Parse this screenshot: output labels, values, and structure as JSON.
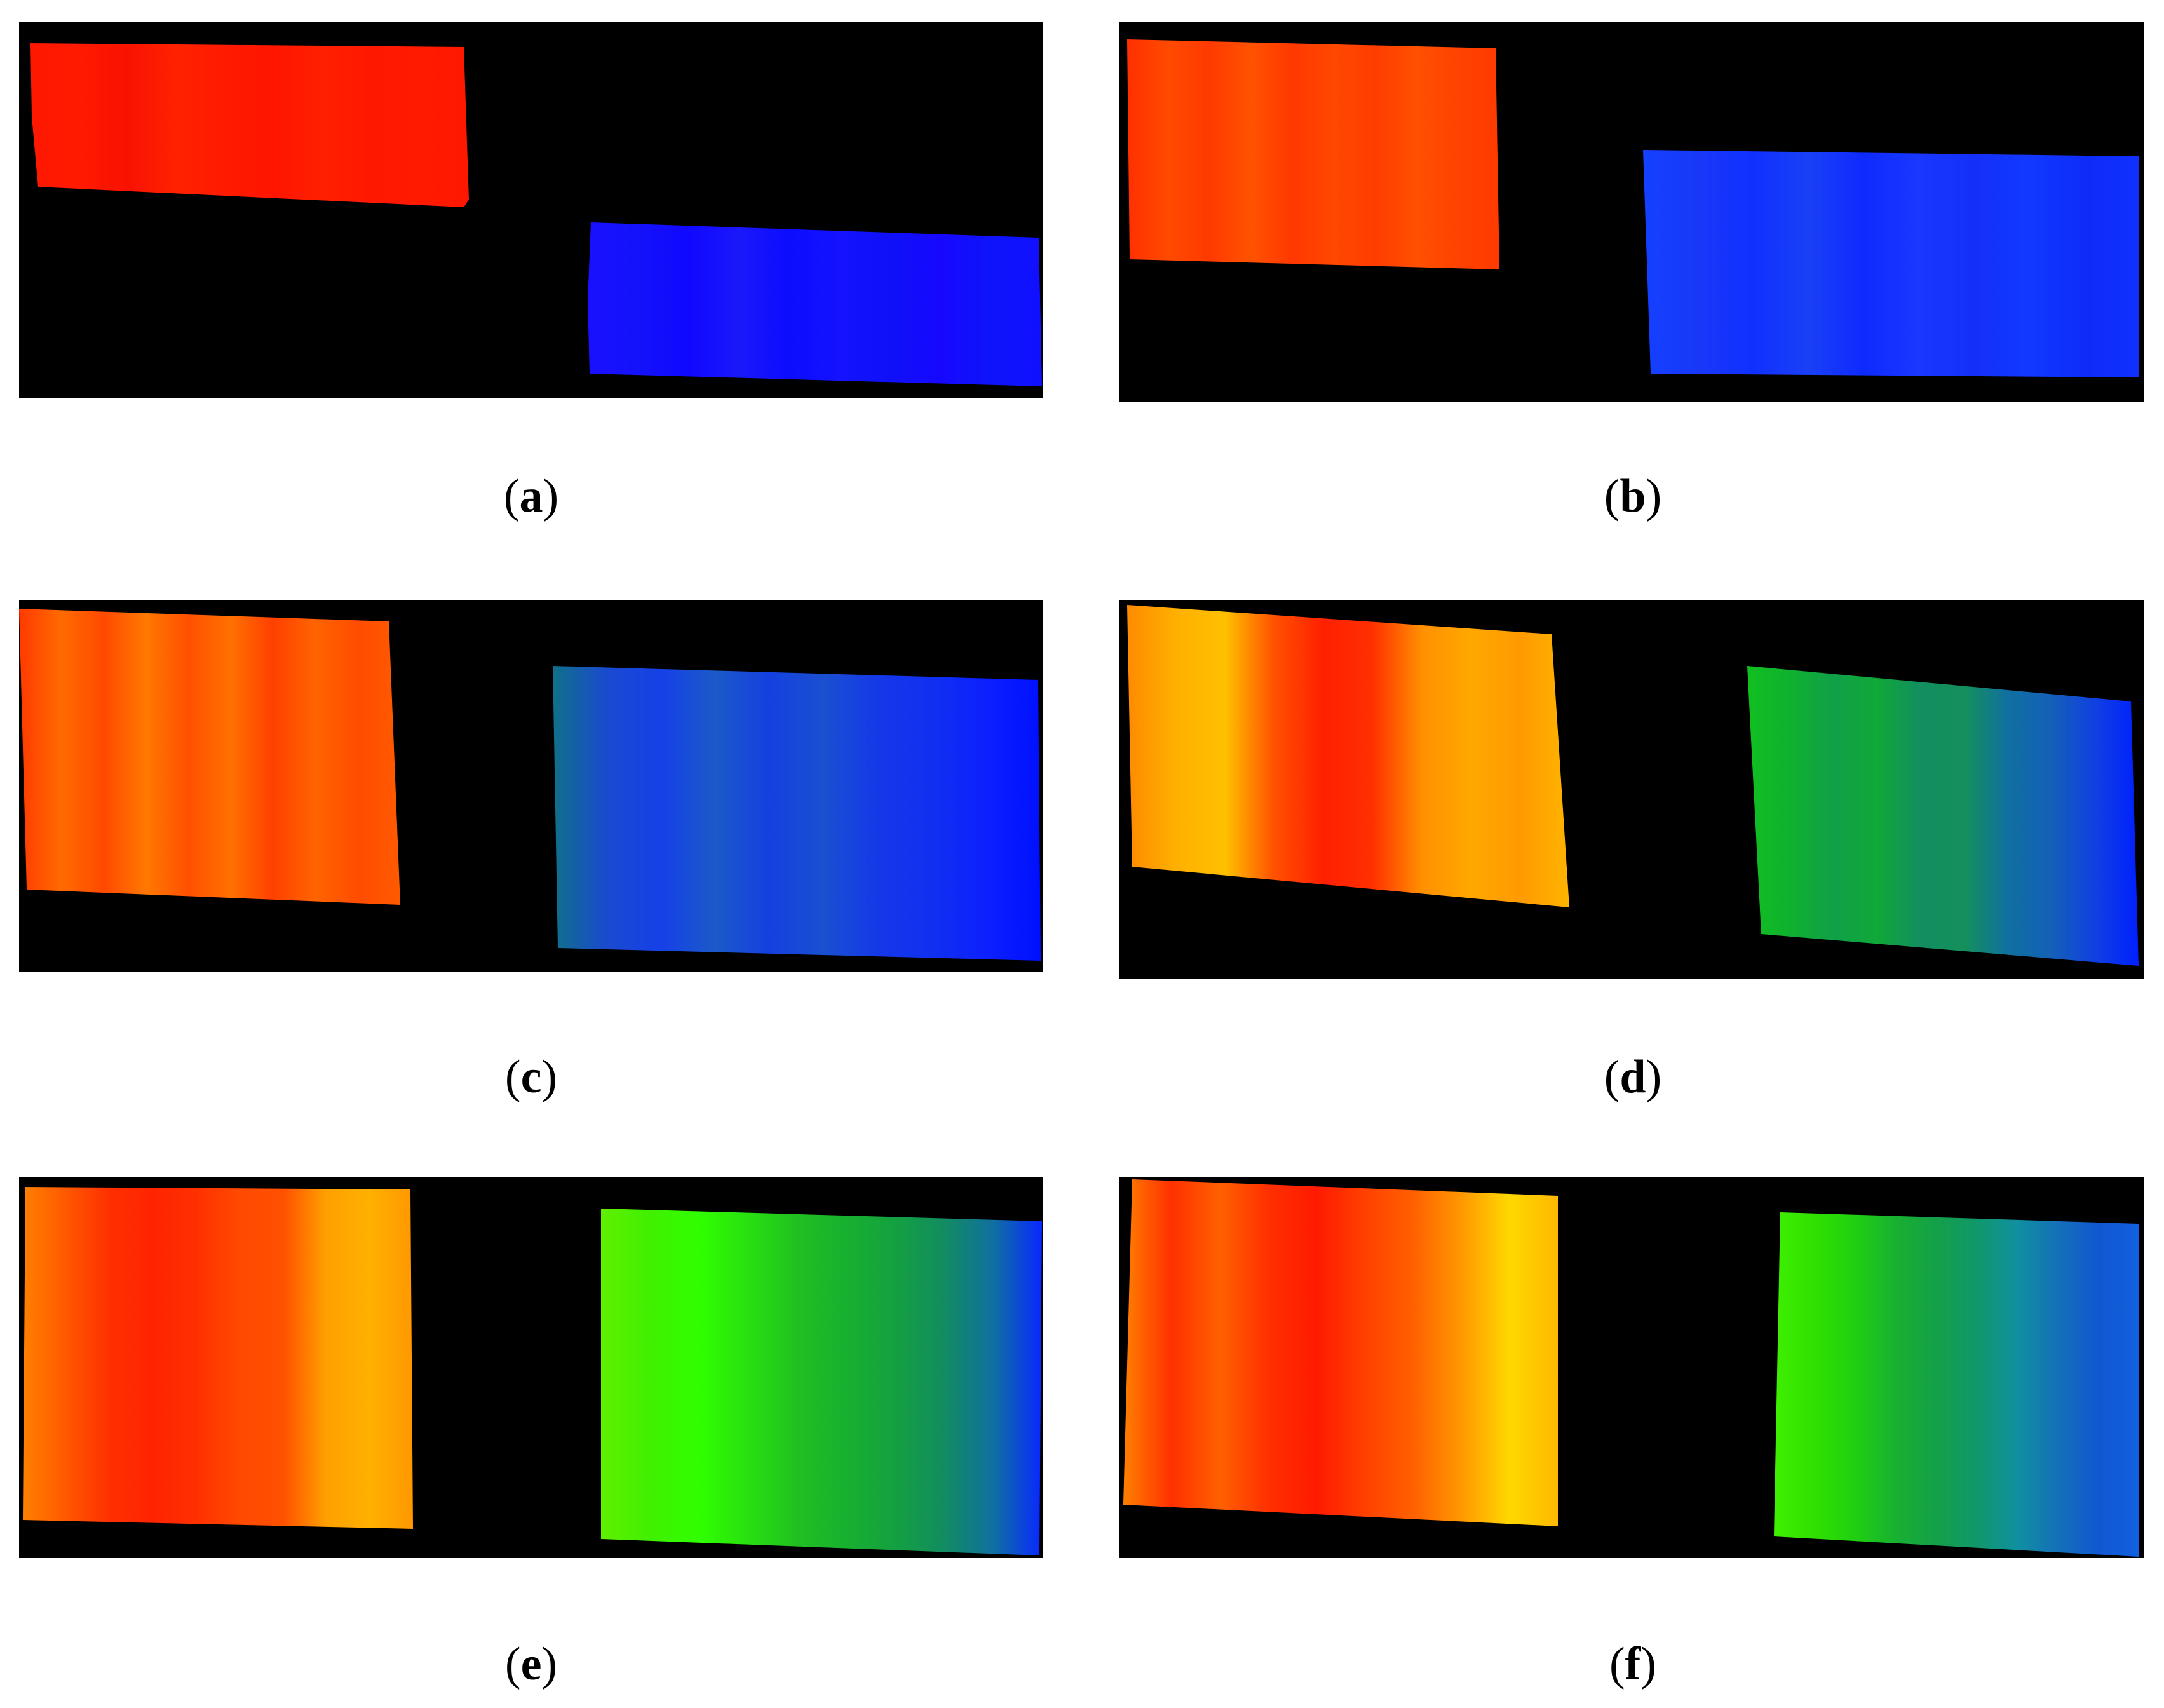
{
  "panels": [
    {
      "id": "a",
      "caption_open": "(",
      "caption_letter": "a",
      "caption_close": ")",
      "left_patch": {
        "stops": [
          "#ff1800",
          "#ff1a00",
          "#f81200",
          "#ff2200",
          "#ff1a00",
          "#ff1500",
          "#ff2000",
          "#ff1800",
          "#ff1a00",
          "#ff1800"
        ]
      },
      "right_patch": {
        "stops": [
          "#1a10ff",
          "#1412fa",
          "#1008ff",
          "#1a18fa",
          "#0c0cff",
          "#1412ff",
          "#0f10f8",
          "#1608ff",
          "#0e14fa",
          "#1010ff"
        ]
      }
    },
    {
      "id": "b",
      "caption_open": "(",
      "caption_letter": "b",
      "caption_close": ")",
      "left_patch": {
        "stops": [
          "#ff3000",
          "#ff4a00",
          "#ff3a00",
          "#ff5200",
          "#ff3800",
          "#ff4800",
          "#ff3c00",
          "#ff5000",
          "#ff4200",
          "#ff3a00"
        ]
      },
      "right_patch": {
        "stops": [
          "#1440ff",
          "#1838f8",
          "#1030ff",
          "#1a40f5",
          "#0e2aff",
          "#1838ff",
          "#1430f8",
          "#1238ff",
          "#0e2cf8",
          "#1030ff"
        ]
      }
    },
    {
      "id": "c",
      "caption_open": "(",
      "caption_letter": "c",
      "caption_close": ")",
      "left_patch": {
        "stops": [
          "#ff3a00",
          "#ff6a00",
          "#ff4a00",
          "#ff7800",
          "#ff5000",
          "#ff7000",
          "#ff4000",
          "#ff6400",
          "#ff4c00",
          "#ff5a00"
        ]
      },
      "right_patch": {
        "stops": [
          "#107088",
          "#1a4ad0",
          "#1640e8",
          "#1b5ac8",
          "#1440e0",
          "#1a50d0",
          "#1438e8",
          "#1030f0",
          "#0c20ff",
          "#0010ff"
        ]
      }
    },
    {
      "id": "d",
      "caption_open": "(",
      "caption_letter": "d",
      "caption_close": ")",
      "left_patch": {
        "stops": [
          "#ff8a00",
          "#ffb000",
          "#ffc000",
          "#ff5000",
          "#ff2000",
          "#ff3000",
          "#ff9000",
          "#ffa800",
          "#ff9a00",
          "#ffb400"
        ]
      },
      "right_patch": {
        "stops": [
          "#10c020",
          "#10b030",
          "#10a048",
          "#10a838",
          "#128e60",
          "#14905c",
          "#1070a0",
          "#1460b8",
          "#1040e0",
          "#0020ff"
        ]
      }
    },
    {
      "id": "e",
      "caption_open": "(",
      "caption_letter": "e",
      "caption_close": ")",
      "left_patch": {
        "stops": [
          "#ff8000",
          "#ff5800",
          "#ff3000",
          "#ff2400",
          "#ff3000",
          "#ff4a00",
          "#ff5000",
          "#ffa000",
          "#ffb000",
          "#ff9800"
        ]
      },
      "right_patch": {
        "stops": [
          "#60f000",
          "#40f000",
          "#30ff00",
          "#28e010",
          "#20c020",
          "#18b030",
          "#14a040",
          "#128c60",
          "#1070a0",
          "#0828ff"
        ]
      }
    },
    {
      "id": "f",
      "caption_open": "(",
      "caption_letter": "f",
      "caption_close": ")",
      "left_patch": {
        "stops": [
          "#ff8000",
          "#ff3000",
          "#ff6000",
          "#ff3000",
          "#ff1a00",
          "#ff4000",
          "#ff6000",
          "#ff9800",
          "#ffd800",
          "#ffb800"
        ]
      },
      "right_patch": {
        "stops": [
          "#40f000",
          "#30e000",
          "#20d010",
          "#18b030",
          "#14a048",
          "#10986a",
          "#1090a0",
          "#1470b8",
          "#1058d0",
          "#1060e0"
        ]
      }
    }
  ]
}
